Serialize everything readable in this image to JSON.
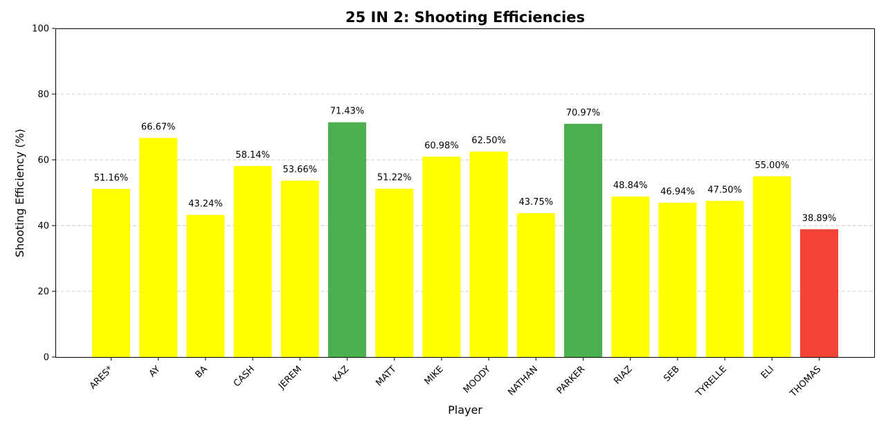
{
  "chart_data": {
    "type": "bar",
    "title": "25 IN 2: Shooting Efficiencies",
    "xlabel": "Player",
    "ylabel": "Shooting Efficiency (%)",
    "ylim": [
      0,
      100
    ],
    "yticks": [
      0,
      20,
      40,
      60,
      80,
      100
    ],
    "grid": true,
    "categories": [
      "ARES*",
      "AY",
      "BA",
      "CASH",
      "JEREM",
      "KAZ",
      "MATT",
      "MIKE",
      "MOODY",
      "NATHAN",
      "PARKER",
      "RIAZ",
      "SEB",
      "TYRELLE",
      "ELI",
      "THOMAS"
    ],
    "values": [
      51.16,
      66.67,
      43.24,
      58.14,
      53.66,
      71.43,
      51.22,
      60.98,
      62.5,
      43.75,
      70.97,
      48.84,
      46.94,
      47.5,
      55.0,
      38.89
    ],
    "data_labels": [
      "51.16%",
      "66.67%",
      "43.24%",
      "58.14%",
      "53.66%",
      "71.43%",
      "51.22%",
      "60.98%",
      "62.50%",
      "43.75%",
      "70.97%",
      "48.84%",
      "46.94%",
      "47.50%",
      "55.00%",
      "38.89%"
    ],
    "colors": [
      "#ffff00",
      "#ffff00",
      "#ffff00",
      "#ffff00",
      "#ffff00",
      "#4caf50",
      "#ffff00",
      "#ffff00",
      "#ffff00",
      "#ffff00",
      "#4caf50",
      "#ffff00",
      "#ffff00",
      "#ffff00",
      "#ffff00",
      "#f44336"
    ]
  }
}
